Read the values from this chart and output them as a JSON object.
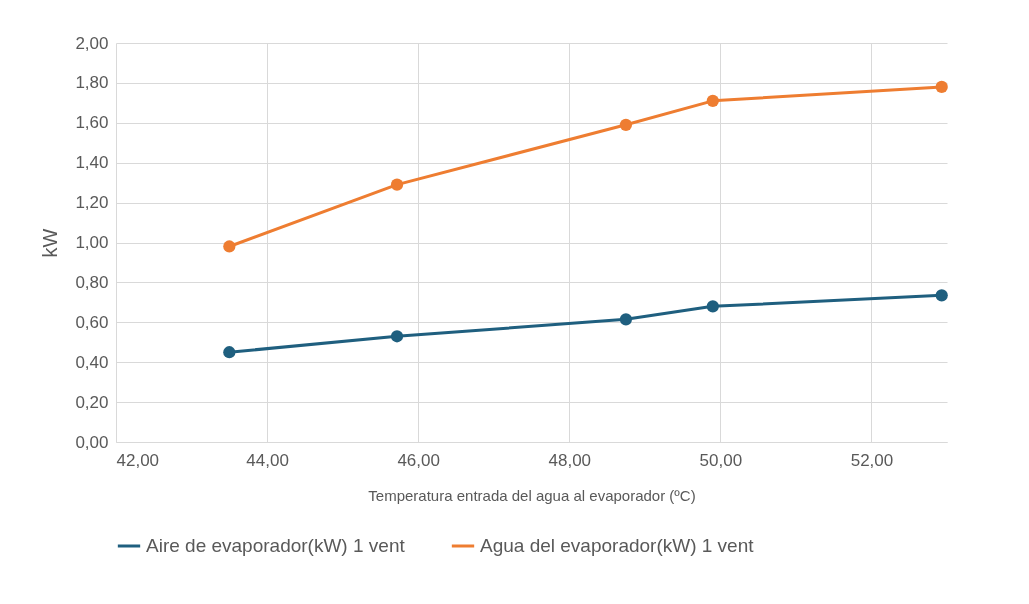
{
  "chart_data": {
    "type": "line",
    "xlabel": "Temperatura entrada del agua al evaporador (ºC)",
    "ylabel": "kW",
    "x": [
      43.5,
      45.72,
      48.75,
      49.9,
      52.93
    ],
    "series": [
      {
        "name": "Aire de evaporador(kW) 1 vent",
        "color": "#1f5f7f",
        "values": [
          0.45,
          0.53,
          0.615,
          0.68,
          0.735
        ]
      },
      {
        "name": "Agua del evaporador(kW) 1 vent",
        "color": "#ee7d31",
        "values": [
          0.98,
          1.29,
          1.59,
          1.71,
          1.78
        ]
      }
    ],
    "xlim": [
      42,
      53
    ],
    "xticks": [
      {
        "value": 42,
        "label": "42,00"
      },
      {
        "value": 44,
        "label": "44,00"
      },
      {
        "value": 46,
        "label": "46,00"
      },
      {
        "value": 48,
        "label": "48,00"
      },
      {
        "value": 50,
        "label": "50,00"
      },
      {
        "value": 52,
        "label": "52,00"
      }
    ],
    "ylim": [
      0,
      2
    ],
    "yticks": [
      {
        "value": 0,
        "label": "0,00"
      },
      {
        "value": 0.2,
        "label": "0,20"
      },
      {
        "value": 0.4,
        "label": "0,40"
      },
      {
        "value": 0.6,
        "label": "0,60"
      },
      {
        "value": 0.8,
        "label": "0,80"
      },
      {
        "value": 1,
        "label": "1,00"
      },
      {
        "value": 1.2,
        "label": "1,20"
      },
      {
        "value": 1.4,
        "label": "1,40"
      },
      {
        "value": 1.6,
        "label": "1,60"
      },
      {
        "value": 1.8,
        "label": "1,80"
      },
      {
        "value": 2,
        "label": "2,00"
      }
    ],
    "grid": true,
    "legend": "bottom",
    "marker": "circle",
    "line_style": "solid"
  }
}
